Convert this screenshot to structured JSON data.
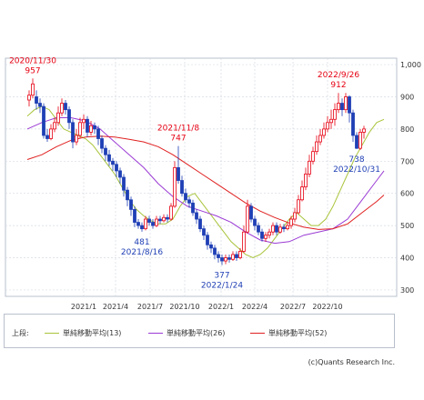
{
  "chart_data": {
    "type": "candlestick",
    "y_axis": {
      "ticks": [
        300,
        400,
        500,
        600,
        700,
        800,
        900,
        1000
      ],
      "tick_labels": [
        "300",
        "400",
        "500",
        "600",
        "700",
        "800",
        "900",
        "1,000"
      ],
      "range": [
        280,
        1020
      ],
      "position": "right"
    },
    "x_axis": {
      "tick_labels": [
        "2021/1",
        "2021/4",
        "2021/7",
        "2021/10",
        "2022/1",
        "2022/4",
        "2022/7",
        "2022/10"
      ]
    },
    "grid": true,
    "legend_prefix": "上段:",
    "series": [
      {
        "name": "単純移動平均(13)",
        "color": "#a8c43a",
        "points": [
          [
            0,
            840
          ],
          [
            8,
            860
          ],
          [
            16,
            870
          ],
          [
            24,
            860
          ],
          [
            32,
            830
          ],
          [
            40,
            800
          ],
          [
            48,
            790
          ],
          [
            56,
            780
          ],
          [
            64,
            770
          ],
          [
            72,
            750
          ],
          [
            80,
            720
          ],
          [
            88,
            690
          ],
          [
            96,
            660
          ],
          [
            104,
            620
          ],
          [
            112,
            580
          ],
          [
            120,
            550
          ],
          [
            128,
            530
          ],
          [
            136,
            515
          ],
          [
            144,
            505
          ],
          [
            152,
            505
          ],
          [
            160,
            520
          ],
          [
            168,
            560
          ],
          [
            176,
            590
          ],
          [
            184,
            600
          ],
          [
            192,
            570
          ],
          [
            200,
            540
          ],
          [
            208,
            510
          ],
          [
            216,
            480
          ],
          [
            224,
            450
          ],
          [
            232,
            430
          ],
          [
            240,
            410
          ],
          [
            248,
            400
          ],
          [
            256,
            410
          ],
          [
            264,
            430
          ],
          [
            272,
            460
          ],
          [
            280,
            490
          ],
          [
            288,
            520
          ],
          [
            296,
            540
          ],
          [
            304,
            520
          ],
          [
            312,
            500
          ],
          [
            320,
            500
          ],
          [
            328,
            520
          ],
          [
            336,
            560
          ],
          [
            344,
            610
          ],
          [
            352,
            660
          ],
          [
            360,
            710
          ],
          [
            368,
            750
          ],
          [
            376,
            790
          ],
          [
            384,
            820
          ],
          [
            392,
            830
          ]
        ]
      },
      {
        "name": "単純移動平均(26)",
        "color": "#9b3bd4",
        "points": [
          [
            0,
            800
          ],
          [
            16,
            820
          ],
          [
            32,
            835
          ],
          [
            48,
            835
          ],
          [
            64,
            825
          ],
          [
            80,
            800
          ],
          [
            96,
            760
          ],
          [
            112,
            720
          ],
          [
            128,
            680
          ],
          [
            144,
            630
          ],
          [
            160,
            590
          ],
          [
            176,
            560
          ],
          [
            192,
            545
          ],
          [
            208,
            530
          ],
          [
            224,
            510
          ],
          [
            240,
            480
          ],
          [
            256,
            455
          ],
          [
            272,
            445
          ],
          [
            288,
            450
          ],
          [
            304,
            470
          ],
          [
            320,
            480
          ],
          [
            336,
            490
          ],
          [
            352,
            520
          ],
          [
            368,
            580
          ],
          [
            384,
            640
          ],
          [
            392,
            670
          ]
        ]
      },
      {
        "name": "単純移動平均(52)",
        "color": "#e02020",
        "points": [
          [
            0,
            705
          ],
          [
            16,
            720
          ],
          [
            32,
            745
          ],
          [
            48,
            765
          ],
          [
            64,
            775
          ],
          [
            80,
            778
          ],
          [
            96,
            775
          ],
          [
            112,
            768
          ],
          [
            128,
            760
          ],
          [
            144,
            745
          ],
          [
            160,
            720
          ],
          [
            176,
            690
          ],
          [
            192,
            660
          ],
          [
            208,
            630
          ],
          [
            224,
            600
          ],
          [
            240,
            570
          ],
          [
            256,
            545
          ],
          [
            272,
            525
          ],
          [
            288,
            508
          ],
          [
            304,
            495
          ],
          [
            320,
            488
          ],
          [
            336,
            490
          ],
          [
            352,
            505
          ],
          [
            368,
            540
          ],
          [
            384,
            575
          ],
          [
            392,
            595
          ]
        ]
      }
    ],
    "candles": [
      [
        2,
        890,
        905,
        920,
        870
      ],
      [
        6,
        905,
        940,
        957,
        895
      ],
      [
        10,
        900,
        880,
        920,
        860
      ],
      [
        14,
        880,
        870,
        895,
        850
      ],
      [
        18,
        870,
        780,
        880,
        770
      ],
      [
        22,
        780,
        770,
        800,
        760
      ],
      [
        26,
        770,
        800,
        815,
        765
      ],
      [
        30,
        800,
        820,
        835,
        790
      ],
      [
        34,
        820,
        850,
        870,
        810
      ],
      [
        38,
        850,
        880,
        895,
        840
      ],
      [
        42,
        880,
        860,
        890,
        845
      ],
      [
        46,
        860,
        820,
        870,
        800
      ],
      [
        50,
        820,
        760,
        830,
        740
      ],
      [
        54,
        760,
        780,
        800,
        750
      ],
      [
        58,
        780,
        820,
        835,
        770
      ],
      [
        62,
        820,
        830,
        845,
        800
      ],
      [
        66,
        830,
        790,
        840,
        775
      ],
      [
        70,
        790,
        810,
        825,
        780
      ],
      [
        74,
        810,
        800,
        820,
        785
      ],
      [
        78,
        800,
        770,
        810,
        750
      ],
      [
        82,
        770,
        740,
        780,
        725
      ],
      [
        86,
        740,
        720,
        750,
        700
      ],
      [
        90,
        720,
        700,
        735,
        685
      ],
      [
        94,
        700,
        690,
        710,
        670
      ],
      [
        98,
        690,
        670,
        700,
        650
      ],
      [
        102,
        670,
        650,
        680,
        630
      ],
      [
        106,
        650,
        610,
        660,
        590
      ],
      [
        110,
        610,
        580,
        620,
        560
      ],
      [
        114,
        580,
        550,
        590,
        530
      ],
      [
        118,
        550,
        510,
        560,
        495
      ],
      [
        122,
        510,
        500,
        520,
        490
      ],
      [
        126,
        500,
        490,
        510,
        481
      ],
      [
        130,
        490,
        520,
        530,
        485
      ],
      [
        134,
        520,
        510,
        530,
        500
      ],
      [
        138,
        510,
        500,
        520,
        490
      ],
      [
        142,
        500,
        520,
        530,
        495
      ],
      [
        146,
        520,
        515,
        530,
        505
      ],
      [
        150,
        515,
        525,
        535,
        510
      ],
      [
        154,
        525,
        520,
        535,
        510
      ],
      [
        158,
        520,
        560,
        570,
        515
      ],
      [
        162,
        560,
        680,
        700,
        555
      ],
      [
        166,
        680,
        640,
        747,
        630
      ],
      [
        170,
        640,
        600,
        655,
        590
      ],
      [
        174,
        600,
        580,
        615,
        570
      ],
      [
        178,
        580,
        570,
        590,
        555
      ],
      [
        182,
        570,
        540,
        580,
        530
      ],
      [
        186,
        540,
        520,
        550,
        505
      ],
      [
        190,
        520,
        490,
        530,
        480
      ],
      [
        194,
        490,
        470,
        500,
        455
      ],
      [
        198,
        470,
        440,
        480,
        425
      ],
      [
        202,
        440,
        430,
        450,
        415
      ],
      [
        206,
        430,
        410,
        440,
        395
      ],
      [
        210,
        410,
        400,
        420,
        385
      ],
      [
        214,
        400,
        390,
        410,
        377
      ],
      [
        218,
        390,
        400,
        410,
        380
      ],
      [
        222,
        400,
        395,
        410,
        385
      ],
      [
        226,
        395,
        410,
        420,
        390
      ],
      [
        230,
        410,
        400,
        420,
        390
      ],
      [
        234,
        400,
        420,
        430,
        395
      ],
      [
        238,
        420,
        480,
        500,
        415
      ],
      [
        242,
        480,
        560,
        580,
        475
      ],
      [
        246,
        560,
        520,
        570,
        510
      ],
      [
        250,
        520,
        500,
        530,
        485
      ],
      [
        254,
        500,
        480,
        510,
        470
      ],
      [
        258,
        480,
        460,
        490,
        450
      ],
      [
        262,
        460,
        470,
        480,
        450
      ],
      [
        266,
        470,
        480,
        490,
        460
      ],
      [
        270,
        480,
        500,
        510,
        470
      ],
      [
        274,
        500,
        480,
        510,
        470
      ],
      [
        278,
        480,
        495,
        505,
        475
      ],
      [
        282,
        495,
        490,
        505,
        480
      ],
      [
        286,
        490,
        500,
        510,
        485
      ],
      [
        290,
        500,
        520,
        530,
        490
      ],
      [
        294,
        520,
        540,
        555,
        510
      ],
      [
        298,
        540,
        580,
        595,
        535
      ],
      [
        302,
        580,
        620,
        640,
        575
      ],
      [
        306,
        620,
        660,
        680,
        610
      ],
      [
        310,
        660,
        700,
        720,
        650
      ],
      [
        314,
        700,
        730,
        745,
        690
      ],
      [
        318,
        730,
        760,
        780,
        720
      ],
      [
        322,
        760,
        780,
        800,
        750
      ],
      [
        326,
        780,
        800,
        820,
        770
      ],
      [
        330,
        800,
        820,
        840,
        790
      ],
      [
        334,
        820,
        830,
        860,
        800
      ],
      [
        338,
        830,
        860,
        880,
        810
      ],
      [
        342,
        860,
        880,
        912,
        850
      ],
      [
        346,
        880,
        860,
        895,
        840
      ],
      [
        350,
        860,
        900,
        912,
        850
      ],
      [
        354,
        900,
        850,
        905,
        820
      ],
      [
        358,
        850,
        780,
        860,
        760
      ],
      [
        362,
        780,
        740,
        790,
        738
      ],
      [
        366,
        740,
        790,
        800,
        735
      ],
      [
        370,
        790,
        800,
        810,
        770
      ]
    ],
    "annotations": [
      {
        "date": "2020/11/30",
        "value": "957",
        "side": "high",
        "at": 6
      },
      {
        "date": "2021/8/16",
        "value": "481",
        "side": "low",
        "at": 126
      },
      {
        "date": "2021/11/8",
        "value": "747",
        "side": "high",
        "at": 166
      },
      {
        "date": "2022/1/24",
        "value": "377",
        "side": "low",
        "at": 214
      },
      {
        "date": "2022/9/26",
        "value": "912",
        "side": "high",
        "at": 342
      },
      {
        "date": "2022/10/31",
        "value": "738",
        "side": "low",
        "at": 362
      }
    ]
  },
  "copyright": "(c)Quants Research Inc."
}
